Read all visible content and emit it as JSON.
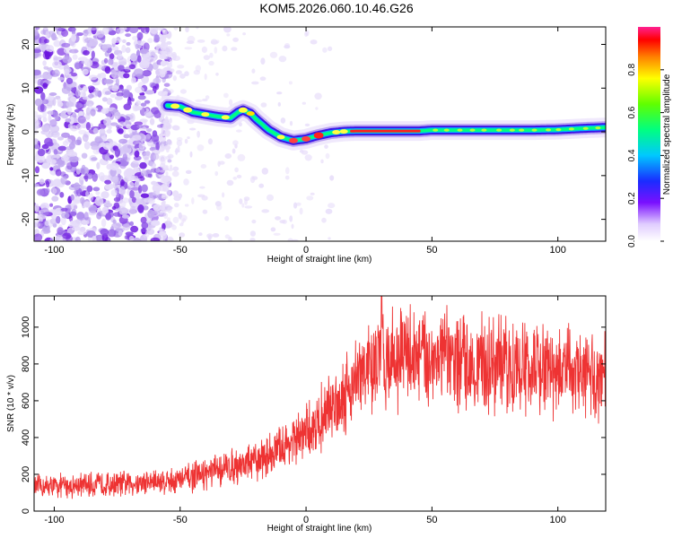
{
  "title": "KOM5.2026.060.10.46.G26",
  "chart_data": [
    {
      "type": "heatmap",
      "name": "spectrogram",
      "title": "KOM5.2026.060.10.46.G26",
      "xlabel": "Height of straight line (km)",
      "ylabel": "Frequency (Hz)",
      "xlim": [
        -108,
        119
      ],
      "ylim": [
        -25,
        24
      ],
      "xticks": [
        -100,
        -50,
        0,
        50,
        100
      ],
      "yticks": [
        -20,
        -10,
        0,
        10,
        20
      ],
      "ridge": {
        "description": "Dominant frequency trace (Hz) vs height (km)",
        "x": [
          -55,
          -50,
          -45,
          -40,
          -35,
          -30,
          -27,
          -25,
          -22,
          -20,
          -15,
          -10,
          -5,
          0,
          5,
          10,
          15,
          20,
          30,
          40,
          45,
          50,
          60,
          70,
          80,
          90,
          100,
          110,
          119
        ],
        "y": [
          6,
          5.8,
          4.5,
          4,
          3.5,
          3.2,
          4.5,
          5,
          4.2,
          3,
          0.5,
          -1.2,
          -2,
          -1.6,
          -0.8,
          -0.2,
          0.1,
          0.2,
          0.2,
          0.2,
          0.2,
          0.4,
          0.4,
          0.4,
          0.4,
          0.4,
          0.5,
          0.8,
          1
        ]
      },
      "noise_region_x": [
        -108,
        -57
      ],
      "colorbar": {
        "label": "Normalized spectral amplitude",
        "range": [
          0.0,
          1.0
        ],
        "ticks": [
          "0.0",
          "0.2",
          "0.4",
          "0.6",
          "0.8"
        ]
      }
    },
    {
      "type": "line",
      "name": "snr",
      "xlabel": "Height of straight line (km)",
      "ylabel": "SNR (10 * v/v)",
      "xlim": [
        -108,
        119
      ],
      "ylim": [
        0,
        1170
      ],
      "xticks": [
        -100,
        -50,
        0,
        50,
        100
      ],
      "yticks": [
        0,
        200,
        400,
        600,
        800,
        1000
      ],
      "color": "#ee3333",
      "trend": {
        "x": [
          -108,
          -90,
          -70,
          -50,
          -40,
          -30,
          -20,
          -10,
          0,
          10,
          20,
          30,
          40,
          50,
          60,
          70,
          80,
          90,
          100,
          110,
          119
        ],
        "y": [
          130,
          140,
          150,
          170,
          200,
          240,
          270,
          340,
          420,
          560,
          720,
          820,
          850,
          840,
          820,
          800,
          790,
          770,
          760,
          740,
          720
        ]
      },
      "peak": {
        "x": 30,
        "y": 1170
      }
    }
  ],
  "colors": {
    "heat_low": "#d8c8f6",
    "heat_mid": "#7a2ae0",
    "snr_line": "#ee3333"
  }
}
